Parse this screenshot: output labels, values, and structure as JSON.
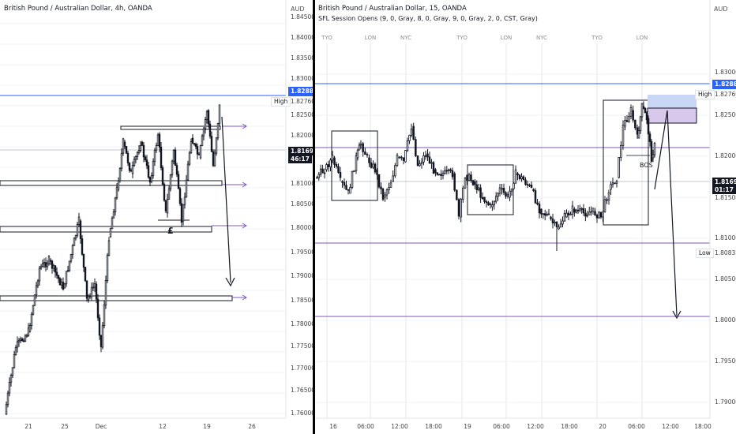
{
  "left": {
    "title": "British Pound / Australian Dollar, 4h, OANDA",
    "currency": "AUD",
    "y_ticks": [
      "1.84500",
      "1.84000",
      "1.83500",
      "1.83000",
      "1.82500",
      "1.82000",
      "1.81500",
      "1.81000",
      "1.80500",
      "1.80000",
      "1.79500",
      "1.79000",
      "1.78500",
      "1.78000",
      "1.77500",
      "1.77000",
      "1.76500",
      "1.76000"
    ],
    "x_ticks": [
      "21",
      "25",
      "Dec",
      "12",
      "19",
      "26"
    ],
    "price_tag": "1.82881",
    "high_label": "High",
    "high_value": "1.82760",
    "last_price": "1.81694",
    "countdown": "46:17",
    "pound_symbol": "£"
  },
  "right": {
    "title": "British Pound / Australian Dollar, 15, OANDA",
    "indicator": "SFL Session Opens (9, 0, Gray, 8, 0, Gray, 9, 0, Gray, 2, 0, CST, Gray)",
    "currency": "AUD",
    "sessions": [
      "TYO",
      "LON",
      "NYC",
      "TYO",
      "LON",
      "NYC",
      "TYO",
      "LON"
    ],
    "y_ticks": [
      "1.83000",
      "1.82500",
      "1.82000",
      "1.81500",
      "1.81000",
      "1.80500",
      "1.80000",
      "1.79500",
      "1.79000"
    ],
    "x_ticks": [
      "16",
      "06:00",
      "12:00",
      "18:00",
      "19",
      "06:00",
      "12:00",
      "18:00",
      "20",
      "06:00",
      "12:00",
      "18:00"
    ],
    "price_tag": "1.82881",
    "high_label": "High",
    "high_value": "1.82760",
    "last_price": "1.81694",
    "countdown": "01:17",
    "low_label": "Low",
    "low_value": "1.80832",
    "bos_label": "BOS"
  },
  "colors": {
    "up": "#089981",
    "bar": "#131722",
    "line_blue": "#2962ff",
    "line_purple": "#7e57c2",
    "grid": "#f0f3fa"
  }
}
